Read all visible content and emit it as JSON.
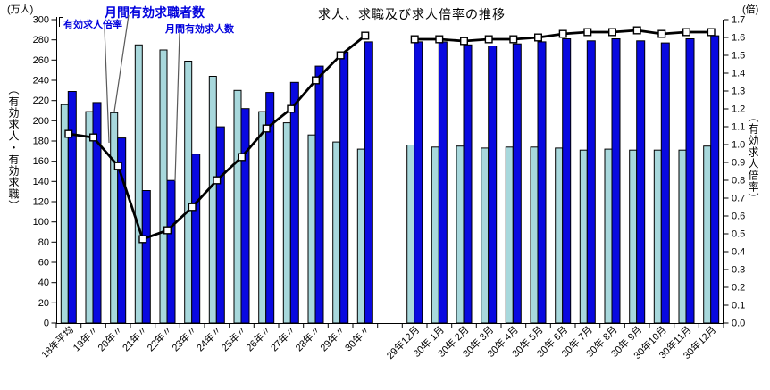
{
  "title": "求人、求職及び求人倍率の推移",
  "left_axis": {
    "unit": "(万人)",
    "title": "（有効求人・有効求職）",
    "min": 0,
    "max": 300,
    "step": 20,
    "tick_labels": [
      "0",
      "20",
      "40",
      "60",
      "80",
      "100",
      "120",
      "140",
      "160",
      "180",
      "200",
      "220",
      "240",
      "260",
      "280",
      "300"
    ]
  },
  "right_axis": {
    "unit": "(倍)",
    "title": "（有効求人倍率）",
    "min": 0,
    "max": 1.7,
    "step": 0.1,
    "tick_labels": [
      "0.0",
      "0.1",
      "0.2",
      "0.3",
      "0.4",
      "0.5",
      "0.6",
      "0.7",
      "0.8",
      "0.9",
      "1.0",
      "1.1",
      "1.2",
      "1.3",
      "1.4",
      "1.5",
      "1.6",
      "1.7"
    ]
  },
  "series_labels": {
    "ratio": "有効求人倍率",
    "seekers": "月間有効求職者数",
    "openings": "月間有効求人数"
  },
  "colors": {
    "seekers_bar": "#A8D8DC",
    "openings_bar": "#0909E0",
    "bar_border": "#000000",
    "line": "#000000",
    "marker_fill": "#FFFFFF",
    "callout_text": "#0000DD",
    "leader_line": "#595959",
    "axis": "#000000"
  },
  "chart_data": {
    "type": "bar",
    "subtype": "grouped bars with line on secondary axis",
    "title": "求人、求職及び求人倍率の推移",
    "ylabel_left": "（有効求人・有効求職）(万人)",
    "ylabel_right": "（有効求人倍率）(倍)",
    "ylim_left": [
      0,
      300
    ],
    "ylim_right": [
      0.0,
      1.7
    ],
    "grid": false,
    "legend_position": "callouts-top-left",
    "groups": [
      {
        "name": "annual",
        "categories": [
          "18年平均",
          "19年〃",
          "20年〃",
          "21年〃",
          "22年〃",
          "23年〃",
          "24年〃",
          "25年〃",
          "26年〃",
          "27年〃",
          "28年〃",
          "29年〃",
          "30年〃"
        ],
        "series": [
          {
            "name": "月間有効求職者数",
            "type": "bar",
            "axis": "left",
            "values": [
              216,
              209,
              208,
              275,
              270,
              259,
              244,
              230,
              209,
              198,
              186,
              179,
              172
            ]
          },
          {
            "name": "月間有効求人数",
            "type": "bar",
            "axis": "left",
            "values": [
              229,
              218,
              183,
              131,
              141,
              167,
              194,
              212,
              228,
              238,
              254,
              268,
              278
            ]
          },
          {
            "name": "有効求人倍率",
            "type": "line",
            "axis": "right",
            "values": [
              1.06,
              1.04,
              0.88,
              0.47,
              0.52,
              0.65,
              0.8,
              0.93,
              1.09,
              1.2,
              1.36,
              1.5,
              1.61
            ]
          }
        ]
      },
      {
        "name": "monthly",
        "categories": [
          "29年12月",
          "30年 1月",
          "30年 2月",
          "30年 3月",
          "30年 4月",
          "30年 5月",
          "30年 6月",
          "30年 7月",
          "30年 8月",
          "30年 9月",
          "30年10月",
          "30年11月",
          "30年12月"
        ],
        "series": [
          {
            "name": "月間有効求職者数",
            "type": "bar",
            "axis": "left",
            "values": [
              176,
              174,
              175,
              173,
              174,
              174,
              173,
              171,
              172,
              171,
              171,
              171,
              175
            ]
          },
          {
            "name": "月間有効求人数",
            "type": "bar",
            "axis": "left",
            "values": [
              278,
              278,
              275,
              274,
              276,
              278,
              281,
              279,
              281,
              279,
              277,
              281,
              284
            ]
          },
          {
            "name": "有効求人倍率",
            "type": "line",
            "axis": "right",
            "values": [
              1.59,
              1.59,
              1.58,
              1.59,
              1.59,
              1.6,
              1.62,
              1.63,
              1.63,
              1.64,
              1.62,
              1.63,
              1.63
            ]
          }
        ]
      }
    ]
  }
}
